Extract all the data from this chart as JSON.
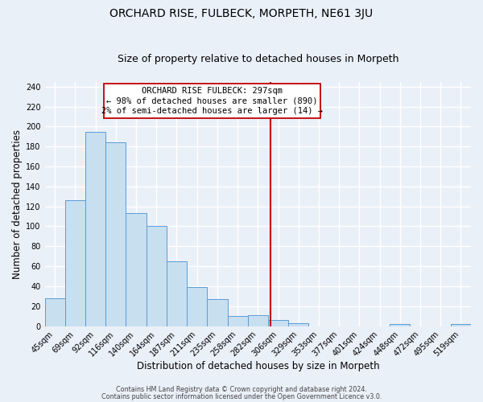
{
  "title": "ORCHARD RISE, FULBECK, MORPETH, NE61 3JU",
  "subtitle": "Size of property relative to detached houses in Morpeth",
  "xlabel": "Distribution of detached houses by size in Morpeth",
  "ylabel": "Number of detached properties",
  "bin_labels": [
    "45sqm",
    "69sqm",
    "92sqm",
    "116sqm",
    "140sqm",
    "164sqm",
    "187sqm",
    "211sqm",
    "235sqm",
    "258sqm",
    "282sqm",
    "306sqm",
    "329sqm",
    "353sqm",
    "377sqm",
    "401sqm",
    "424sqm",
    "448sqm",
    "472sqm",
    "495sqm",
    "519sqm"
  ],
  "bar_heights": [
    28,
    126,
    195,
    184,
    113,
    100,
    65,
    39,
    27,
    10,
    11,
    6,
    3,
    0,
    0,
    0,
    0,
    2,
    0,
    0,
    2
  ],
  "bar_color": "#c8dff0",
  "bar_edge_color": "#5b9bd5",
  "vline_color": "#c00000",
  "annotation_title": "ORCHARD RISE FULBECK: 297sqm",
  "annotation_line1": "← 98% of detached houses are smaller (890)",
  "annotation_line2": "2% of semi-detached houses are larger (14) →",
  "annotation_box_color": "#c00000",
  "ylim": [
    0,
    245
  ],
  "yticks": [
    0,
    20,
    40,
    60,
    80,
    100,
    120,
    140,
    160,
    180,
    200,
    220,
    240
  ],
  "footnote1": "Contains HM Land Registry data © Crown copyright and database right 2024.",
  "footnote2": "Contains public sector information licensed under the Open Government Licence v3.0.",
  "background_color": "#eaf0f8",
  "plot_background_color": "#eaf0f8",
  "grid_color": "#ffffff",
  "title_fontsize": 10,
  "subtitle_fontsize": 9,
  "axis_label_fontsize": 8.5,
  "tick_fontsize": 7,
  "annotation_fontsize": 7.5,
  "footnote_fontsize": 5.8
}
